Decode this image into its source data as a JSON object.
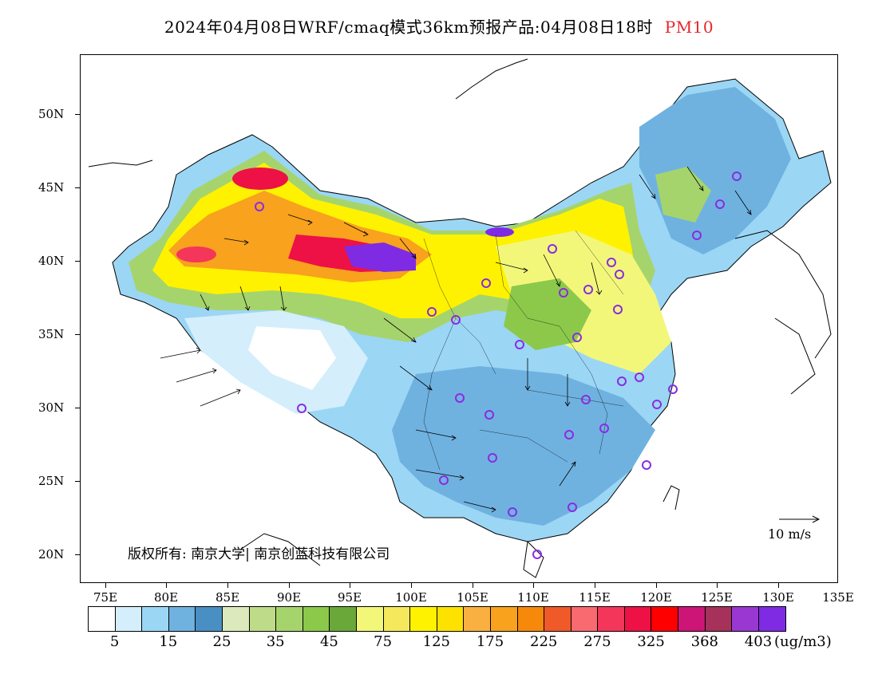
{
  "title": {
    "main": "2024年04月08日WRF/cmaq模式36km预报产品:04月08日18时",
    "variable": "PM10"
  },
  "axes": {
    "lat_labels": [
      "50N",
      "45N",
      "40N",
      "35N",
      "30N",
      "25N",
      "20N"
    ],
    "lon_labels": [
      "75E",
      "80E",
      "85E",
      "90E",
      "95E",
      "100E",
      "105E",
      "110E",
      "115E",
      "120E",
      "125E",
      "130E",
      "135E"
    ]
  },
  "copyright": "版权所有: 南京大学| 南京创蓝科技有限公司",
  "wind_scale": {
    "label": "10 m/s"
  },
  "colorbar": {
    "colors": [
      "#ffffff",
      "#d4eefb",
      "#9bd6f5",
      "#6fb2e0",
      "#4a8fc4",
      "#dbe9bc",
      "#bedb8a",
      "#a6d46c",
      "#8cc94a",
      "#6aa83a",
      "#f2f77a",
      "#f5e85c",
      "#fff200",
      "#fde200",
      "#f9b040",
      "#f8a21e",
      "#f7890a",
      "#f05a28",
      "#f96a70",
      "#f4365a",
      "#ee1145",
      "#ff0000",
      "#cc1577",
      "#a6325b",
      "#9a37d2",
      "#7f2be4"
    ],
    "labels": [
      "5",
      "15",
      "25",
      "35",
      "45",
      "75",
      "125",
      "175",
      "225",
      "275",
      "325",
      "368",
      "403"
    ],
    "unit": "(ug/m3)"
  },
  "colors": {
    "title_highlight": "#e8262a",
    "station_marker": "#8a2be2",
    "coastline": "#000000"
  }
}
